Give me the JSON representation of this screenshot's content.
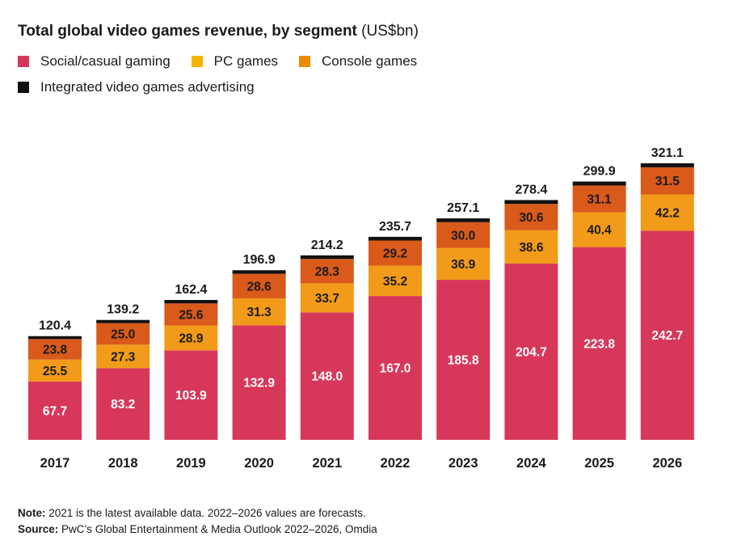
{
  "colors": {
    "social": "#d7385a",
    "pc": "#f29b1a",
    "console": "#d95a1a",
    "advertising": "#111111"
  },
  "title": "Total global video games revenue, by segment",
  "title_unit": "(US$bn)",
  "legend": [
    {
      "label": "Social/casual gaming",
      "color": "#d7385a"
    },
    {
      "label": "PC games",
      "color": "#f4b400"
    },
    {
      "label": "Console games",
      "color": "#ea8a00"
    },
    {
      "label": "Integrated video games advertising",
      "color": "#111111"
    }
  ],
  "chart_data": {
    "type": "bar",
    "stacked": true,
    "title": "Total global video games revenue, by segment (US$bn)",
    "categories": [
      "2017",
      "2018",
      "2019",
      "2020",
      "2021",
      "2022",
      "2023",
      "2024",
      "2025",
      "2026"
    ],
    "series": [
      {
        "name": "Social/casual gaming",
        "values": [
          67.7,
          83.2,
          103.9,
          132.9,
          148.0,
          167.0,
          185.8,
          204.7,
          223.8,
          242.7
        ]
      },
      {
        "name": "PC games",
        "values": [
          25.5,
          27.3,
          28.9,
          31.3,
          33.7,
          35.2,
          36.9,
          38.6,
          40.4,
          42.2
        ]
      },
      {
        "name": "Console games",
        "values": [
          23.8,
          25.0,
          25.6,
          28.6,
          28.3,
          29.2,
          30.0,
          30.6,
          31.1,
          31.5
        ]
      },
      {
        "name": "Integrated video games advertising",
        "values": [
          3.4,
          3.7,
          4.0,
          4.1,
          4.2,
          4.3,
          4.4,
          4.5,
          4.6,
          4.7
        ]
      }
    ],
    "segment_labels": [
      [
        "67.7",
        "83.2",
        "103.9",
        "132.9",
        "148.0",
        "167.0",
        "185.8",
        "204.7",
        "223.8",
        "242.7"
      ],
      [
        "25.5",
        "27.3",
        "28.9",
        "31.3",
        "33.7",
        "35.2",
        "36.9",
        "38.6",
        "40.4",
        "42.2"
      ],
      [
        "23.8",
        "25.0",
        "25.6",
        "28.6",
        "28.3",
        "29.2",
        "30.0",
        "30.6",
        "31.1",
        "31.5"
      ]
    ],
    "totals": [
      "120.4",
      "139.2",
      "162.4",
      "196.9",
      "214.2",
      "235.7",
      "257.1",
      "278.4",
      "299.9",
      "321.1"
    ],
    "ylim": [
      0,
      321.1
    ],
    "grid": false,
    "legend_position": "top-left"
  },
  "note_label": "Note:",
  "note_text": " 2021 is the latest available data. 2022–2026 values are forecasts.",
  "source_label": "Source:",
  "source_text": " PwC’s Global Entertainment & Media Outlook 2022–2026, Omdia"
}
